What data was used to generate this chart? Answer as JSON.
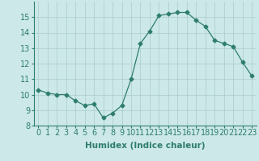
{
  "x": [
    0,
    1,
    2,
    3,
    4,
    5,
    6,
    7,
    8,
    9,
    10,
    11,
    12,
    13,
    14,
    15,
    16,
    17,
    18,
    19,
    20,
    21,
    22,
    23
  ],
  "y": [
    10.3,
    10.1,
    10.0,
    10.0,
    9.6,
    9.3,
    9.4,
    8.5,
    8.8,
    9.3,
    11.0,
    13.3,
    14.1,
    15.1,
    15.2,
    15.3,
    15.3,
    14.8,
    14.4,
    13.5,
    13.3,
    13.1,
    12.1,
    11.2
  ],
  "line_color": "#2e7d6e",
  "marker": "D",
  "marker_size": 2.5,
  "bg_color": "#cce8e8",
  "grid_color": "#aacccc",
  "xlabel": "Humidex (Indice chaleur)",
  "xlim": [
    -0.5,
    23.5
  ],
  "ylim": [
    8,
    16
  ],
  "yticks": [
    8,
    9,
    10,
    11,
    12,
    13,
    14,
    15
  ],
  "xticks": [
    0,
    1,
    2,
    3,
    4,
    5,
    6,
    7,
    8,
    9,
    10,
    11,
    12,
    13,
    14,
    15,
    16,
    17,
    18,
    19,
    20,
    21,
    22,
    23
  ],
  "label_fontsize": 7.5,
  "tick_fontsize": 7
}
